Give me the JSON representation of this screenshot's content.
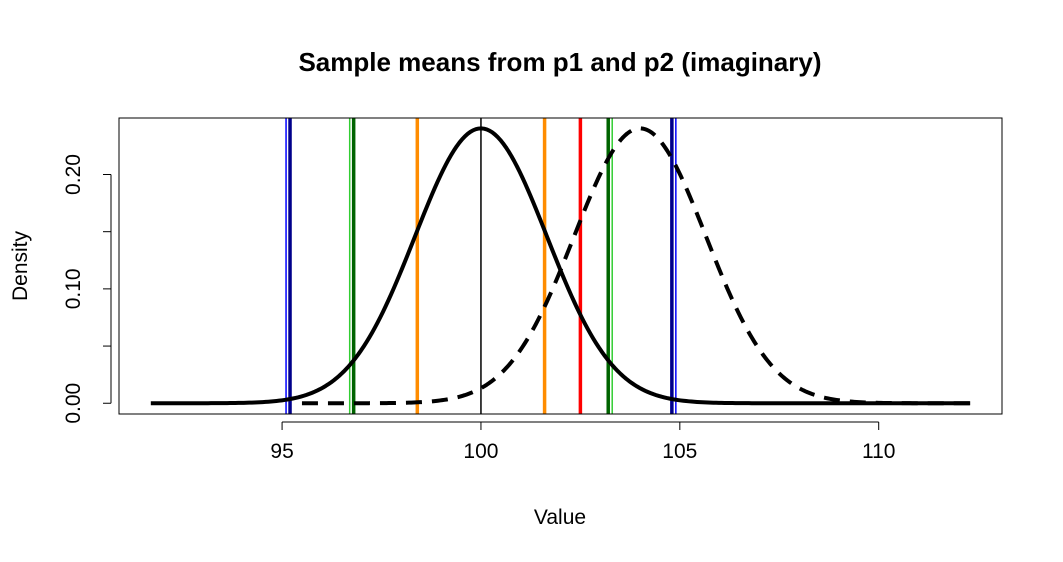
{
  "chart_data": {
    "type": "line",
    "title": "Sample means from p1 and p2 (imaginary)",
    "xlabel": "Value",
    "ylabel": "Density",
    "xlim": [
      90.9,
      113.1
    ],
    "ylim": [
      -0.0094,
      0.2494
    ],
    "x_ticks": [
      95,
      100,
      105,
      110
    ],
    "x_tick_labels": [
      "95",
      "100",
      "105",
      "110"
    ],
    "y_ticks": [
      0.0,
      0.05,
      0.1,
      0.15,
      0.2
    ],
    "y_tick_labels": [
      "0.00",
      "",
      "0.10",
      "",
      "0.20"
    ],
    "grid": false,
    "series": [
      {
        "style": "solid",
        "color": "#000000",
        "distribution": "normal",
        "mean": 100,
        "sd": 1.66,
        "x_range": [
          91.7,
          112.3
        ]
      },
      {
        "style": "dashed",
        "color": "#000000",
        "distribution": "normal",
        "mean": 104,
        "sd": 1.66,
        "x_range": [
          95.5,
          112.3
        ]
      }
    ],
    "vertical_lines": [
      {
        "x": 95.1,
        "color": "#0000ff",
        "weight": "thin"
      },
      {
        "x": 95.2,
        "color": "#00008b",
        "weight": "thick"
      },
      {
        "x": 96.7,
        "color": "#32cd32",
        "weight": "thin"
      },
      {
        "x": 96.8,
        "color": "#006400",
        "weight": "thick"
      },
      {
        "x": 98.4,
        "color": "#ff8c00",
        "weight": "thick"
      },
      {
        "x": 100.0,
        "color": "#000000",
        "weight": "thin"
      },
      {
        "x": 101.6,
        "color": "#ff8c00",
        "weight": "thick"
      },
      {
        "x": 102.5,
        "color": "#ff0000",
        "weight": "thick"
      },
      {
        "x": 103.2,
        "color": "#006400",
        "weight": "thick"
      },
      {
        "x": 103.3,
        "color": "#32cd32",
        "weight": "thin"
      },
      {
        "x": 104.8,
        "color": "#00008b",
        "weight": "thick"
      },
      {
        "x": 104.9,
        "color": "#0000ff",
        "weight": "thin"
      }
    ]
  }
}
